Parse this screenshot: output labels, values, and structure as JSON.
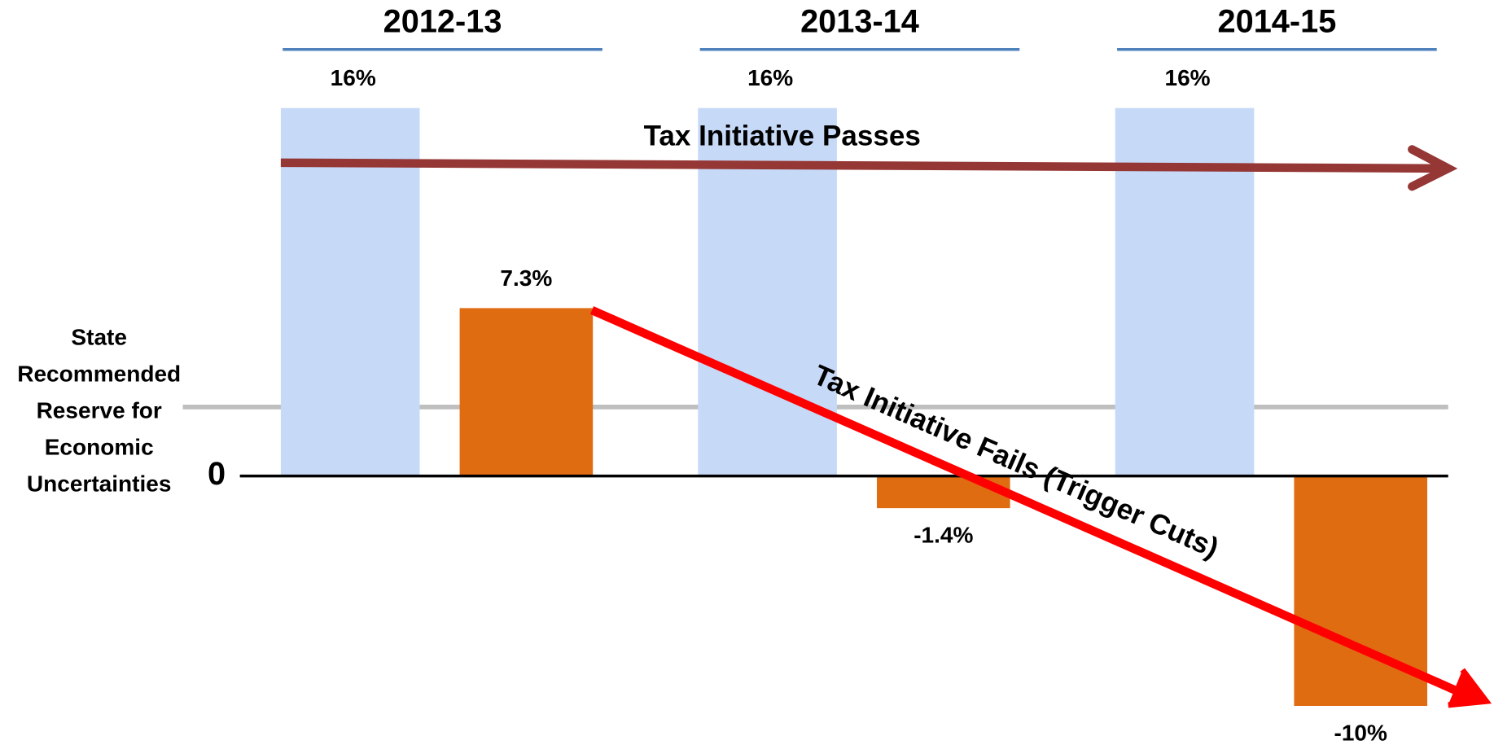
{
  "chart_data": {
    "type": "bar",
    "categories": [
      "2012-13",
      "2013-14",
      "2014-15"
    ],
    "series": [
      {
        "color": "#c6d9f7",
        "values": [
          16,
          16,
          16
        ],
        "value_labels": [
          "16%",
          "16%",
          "16%"
        ]
      },
      {
        "color": "#e06c12",
        "values": [
          7.3,
          -1.4,
          -10
        ],
        "value_labels": [
          "7.3%",
          "-1.4%",
          "-10%"
        ]
      }
    ],
    "ylim": [
      -11.7,
      20.7
    ],
    "yticks": [
      0
    ],
    "reference_line": {
      "value": 3,
      "label_lines": [
        "State",
        "Recommended",
        "Reserve for",
        "Economic",
        "Uncertainties"
      ]
    },
    "annotations": [
      "Tax Initiative Passes",
      "Tax Initiative Fails (Trigger Cuts)"
    ]
  }
}
